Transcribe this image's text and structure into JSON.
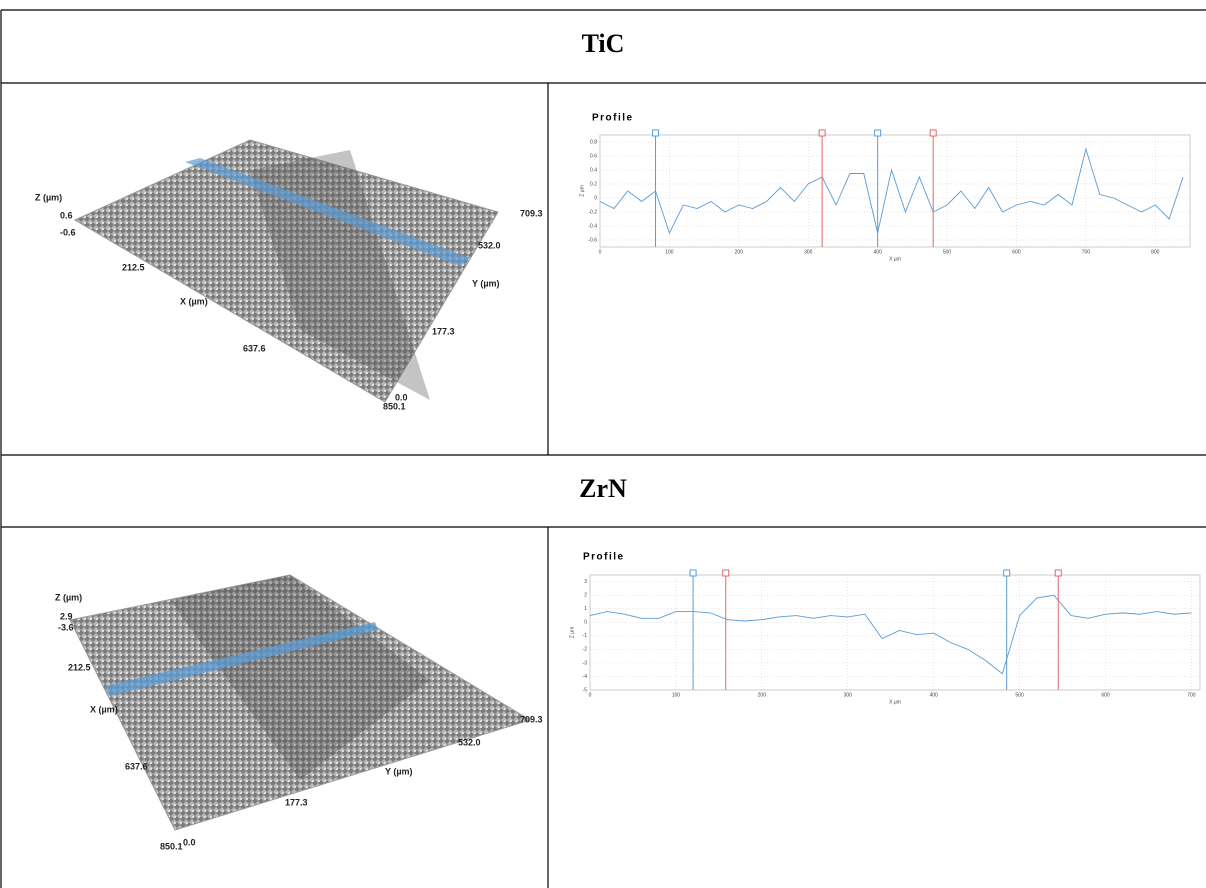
{
  "sections": [
    {
      "title": "TiC",
      "surface": {
        "labels": [
          "Z (µm)",
          "0.6",
          "-0.6",
          "212.5",
          "X (µm)",
          "637.6",
          "850.1",
          "0.0",
          "177.3",
          "Y (µm)",
          "532.0",
          "709.3"
        ]
      },
      "profile": {
        "type": "line",
        "title": "Profile",
        "y_label": "Z µm",
        "x_label": "X µm",
        "color": "#5b9bd5",
        "x": [
          0,
          20,
          40,
          60,
          80,
          100,
          120,
          140,
          160,
          180,
          200,
          220,
          240,
          260,
          280,
          300,
          320,
          340,
          360,
          380,
          400,
          420,
          440,
          460,
          480,
          500,
          520,
          540,
          560,
          580,
          600,
          620,
          640,
          660,
          680,
          700,
          720,
          740,
          760,
          780,
          800,
          820,
          840
        ],
        "values": [
          -0.05,
          -0.15,
          0.1,
          -0.05,
          0.1,
          -0.5,
          -0.1,
          -0.15,
          -0.05,
          -0.2,
          -0.1,
          -0.15,
          -0.05,
          0.15,
          -0.05,
          0.2,
          0.3,
          -0.1,
          0.35,
          0.35,
          -0.5,
          0.4,
          -0.2,
          0.3,
          -0.2,
          -0.1,
          0.1,
          -0.15,
          0.15,
          -0.2,
          -0.1,
          -0.05,
          -0.1,
          0.05,
          -0.1,
          0.7,
          0.05,
          0.0,
          -0.1,
          -0.2,
          -0.1,
          -0.3,
          0.3
        ],
        "xlim": [
          0,
          850
        ],
        "ylim": [
          -0.7,
          0.9
        ],
        "xticks": [
          0,
          100,
          200,
          300,
          400,
          500,
          600,
          700,
          800
        ],
        "yticks": [
          -0.6,
          -0.4,
          -0.2,
          0,
          0.2,
          0.4,
          0.6,
          0.8
        ],
        "cursors": [
          {
            "x": 80,
            "color": "#5b9bd5"
          },
          {
            "x": 320,
            "color": "#e06666"
          },
          {
            "x": 400,
            "color": "#5b9bd5"
          },
          {
            "x": 480,
            "color": "#e06666"
          }
        ]
      }
    },
    {
      "title": "ZrN",
      "surface": {
        "labels": [
          "Z (µm)",
          "2.9",
          "-3.6",
          "212.5",
          "X (µm)",
          "637.6",
          "850.1",
          "0.0",
          "177.3",
          "Y (µm)",
          "532.0",
          "709.3"
        ]
      },
      "profile": {
        "type": "line",
        "title": "Profile",
        "y_label": "Z µm",
        "x_label": "X µm",
        "color": "#5b9bd5",
        "x": [
          0,
          20,
          40,
          60,
          80,
          100,
          120,
          140,
          160,
          180,
          200,
          220,
          240,
          260,
          280,
          300,
          320,
          340,
          360,
          380,
          400,
          420,
          440,
          460,
          480,
          500,
          520,
          540,
          560,
          580,
          600,
          620,
          640,
          660,
          680,
          700
        ],
        "values": [
          0.5,
          0.8,
          0.6,
          0.3,
          0.3,
          0.8,
          0.8,
          0.7,
          0.2,
          0.1,
          0.2,
          0.4,
          0.5,
          0.3,
          0.5,
          0.4,
          0.6,
          -1.2,
          -0.6,
          -0.9,
          -0.8,
          -1.5,
          -2.0,
          -2.8,
          -3.8,
          0.5,
          1.8,
          2.0,
          0.5,
          0.3,
          0.6,
          0.7,
          0.6,
          0.8,
          0.6,
          0.7
        ],
        "xlim": [
          0,
          710
        ],
        "ylim": [
          -5,
          3.5
        ],
        "xticks": [
          0,
          100,
          200,
          300,
          400,
          500,
          600,
          700
        ],
        "yticks": [
          -5,
          -4,
          -3,
          -2,
          -1,
          0,
          1,
          2,
          3
        ],
        "cursors": [
          {
            "x": 120,
            "color": "#5b9bd5"
          },
          {
            "x": 158,
            "color": "#e06666"
          },
          {
            "x": 485,
            "color": "#5b9bd5"
          },
          {
            "x": 545,
            "color": "#e06666"
          }
        ]
      }
    }
  ]
}
